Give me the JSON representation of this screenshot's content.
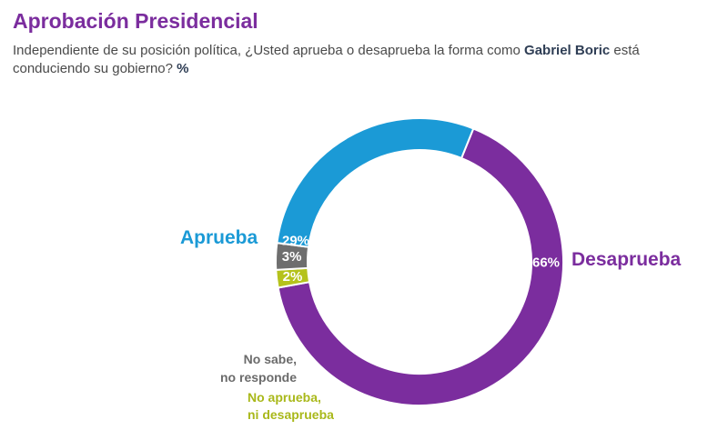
{
  "header": {
    "title": "Aprobación Presidencial",
    "subtitle_pre": "Independiente de su posición política, ¿Usted aprueba o desaprueba la forma como ",
    "subtitle_name": "Gabriel Boric",
    "subtitle_post": " está conduciendo su gobierno? ",
    "subtitle_unit": "%"
  },
  "labels": {
    "approve": "Aprueba",
    "disapprove": "Desaprueba",
    "no_sabe_line1": "No sabe,",
    "no_sabe_line2": "no responde",
    "ni_line1": "No aprueba,",
    "ni_line2": "ni desaprueba"
  },
  "chart_data": {
    "type": "pie",
    "donut": true,
    "title": "Aprobación Presidencial",
    "unit": "%",
    "categories": [
      "Desaprueba",
      "No aprueba, ni desaprueba",
      "No sabe, no responde",
      "Aprueba"
    ],
    "values": [
      66,
      2,
      3,
      29
    ],
    "value_labels": [
      "66%",
      "2%",
      "3%",
      "29%"
    ],
    "colors": [
      "#7B2D9E",
      "#B5C21C",
      "#6E6E6E",
      "#1B9AD6"
    ]
  }
}
